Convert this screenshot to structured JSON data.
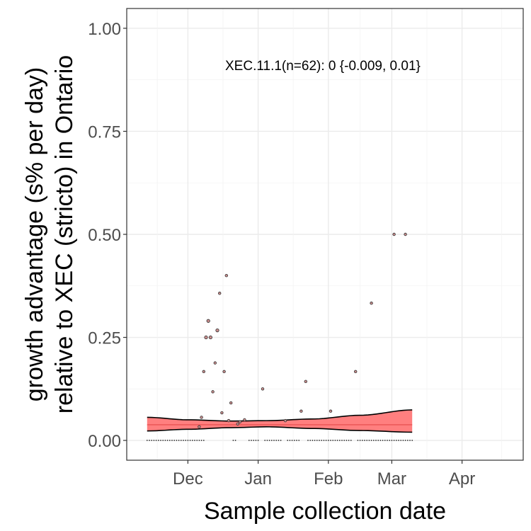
{
  "chart_data": {
    "type": "scatter",
    "title": "",
    "xlabel": "Sample collection date",
    "ylabel_lines": [
      "growth advantage (s% per day)",
      "relative to XEC (stricto) in Ontario"
    ],
    "x_ticks": [
      "Dec",
      "Jan",
      "Feb",
      "Mar",
      "Apr"
    ],
    "x_tick_dates": [
      "2024-12-01",
      "2025-01-01",
      "2025-02-01",
      "2025-03-01",
      "2025-04-01"
    ],
    "xlim": [
      "2024-11-04",
      "2025-04-28"
    ],
    "y_ticks": [
      "0.00",
      "0.25",
      "0.50",
      "0.75",
      "1.00"
    ],
    "y_tick_values": [
      0,
      0.25,
      0.5,
      0.75,
      1.0
    ],
    "ylim": [
      -0.048,
      1.048
    ],
    "grid": true,
    "annotation": "XEC.11.1(n=62): 0 {-0.009, 0.01}",
    "colors": {
      "band_fill": "#ff7f7f",
      "band_line": "#000000",
      "center_line": "#e34a4a",
      "point_fill": "#c98c8c",
      "point_stroke": "#333333"
    },
    "points": [
      {
        "date": "2024-12-06",
        "y": 0.033
      },
      {
        "date": "2024-12-07",
        "y": 0.056
      },
      {
        "date": "2024-12-08",
        "y": 0.167
      },
      {
        "date": "2024-12-09",
        "y": 0.25
      },
      {
        "date": "2024-12-10",
        "y": 0.29
      },
      {
        "date": "2024-12-11",
        "y": 0.25
      },
      {
        "date": "2024-12-12",
        "y": 0.118
      },
      {
        "date": "2024-12-13",
        "y": 0.188
      },
      {
        "date": "2024-12-14",
        "y": 0.267
      },
      {
        "date": "2024-12-15",
        "y": 0.357
      },
      {
        "date": "2024-12-16",
        "y": 0.067
      },
      {
        "date": "2024-12-17",
        "y": 0.167
      },
      {
        "date": "2024-12-18",
        "y": 0.4
      },
      {
        "date": "2024-12-19",
        "y": 0.048
      },
      {
        "date": "2024-12-20",
        "y": 0.091
      },
      {
        "date": "2024-12-23",
        "y": 0.04
      },
      {
        "date": "2024-12-24",
        "y": 0.045
      },
      {
        "date": "2024-12-26",
        "y": 0.05
      },
      {
        "date": "2025-01-03",
        "y": 0.125
      },
      {
        "date": "2025-01-13",
        "y": 0.048
      },
      {
        "date": "2025-01-20",
        "y": 0.071
      },
      {
        "date": "2025-01-22",
        "y": 0.143
      },
      {
        "date": "2025-02-02",
        "y": 0.071
      },
      {
        "date": "2025-02-13",
        "y": 0.167
      },
      {
        "date": "2025-02-20",
        "y": 0.333
      },
      {
        "date": "2025-03-02",
        "y": 0.5
      },
      {
        "date": "2025-03-07",
        "y": 0.5
      }
    ],
    "zero_point_dates_ranges": [
      [
        "2024-11-13",
        "2024-12-08"
      ],
      [
        "2024-12-21",
        "2024-12-22"
      ],
      [
        "2024-12-28",
        "2025-01-01"
      ],
      [
        "2025-01-04",
        "2025-01-11"
      ],
      [
        "2025-01-14",
        "2025-01-19"
      ],
      [
        "2025-01-23",
        "2025-02-11"
      ],
      [
        "2025-02-14",
        "2025-03-10"
      ]
    ],
    "fit": {
      "x": [
        "2024-11-13",
        "2024-12-01",
        "2024-12-20",
        "2025-01-05",
        "2025-01-25",
        "2025-02-15",
        "2025-03-10"
      ],
      "center": [
        0.038,
        0.038,
        0.038,
        0.038,
        0.038,
        0.038,
        0.038
      ],
      "upper": [
        0.056,
        0.05,
        0.047,
        0.048,
        0.052,
        0.061,
        0.074
      ],
      "lower": [
        0.023,
        0.027,
        0.031,
        0.033,
        0.029,
        0.024,
        0.02
      ]
    }
  }
}
